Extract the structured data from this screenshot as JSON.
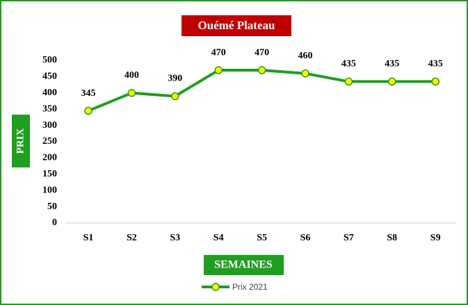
{
  "chart_data": {
    "type": "line",
    "title": "Ouémé Plateau",
    "y_label": "PRIX",
    "x_label": "SEMAINES",
    "categories": [
      "S1",
      "S2",
      "S3",
      "S4",
      "S5",
      "S6",
      "S7",
      "S8",
      "S9"
    ],
    "series": [
      {
        "name": "Prix 2021",
        "color": "#1f9e1f",
        "marker_color": "#ffff00",
        "values": [
          345,
          400,
          390,
          470,
          470,
          460,
          435,
          435,
          435
        ]
      }
    ],
    "ylim": [
      0,
      500
    ],
    "yticks": [
      0,
      50,
      100,
      150,
      200,
      250,
      300,
      350,
      400,
      450,
      500
    ],
    "grid": false,
    "legend": "bottom"
  }
}
